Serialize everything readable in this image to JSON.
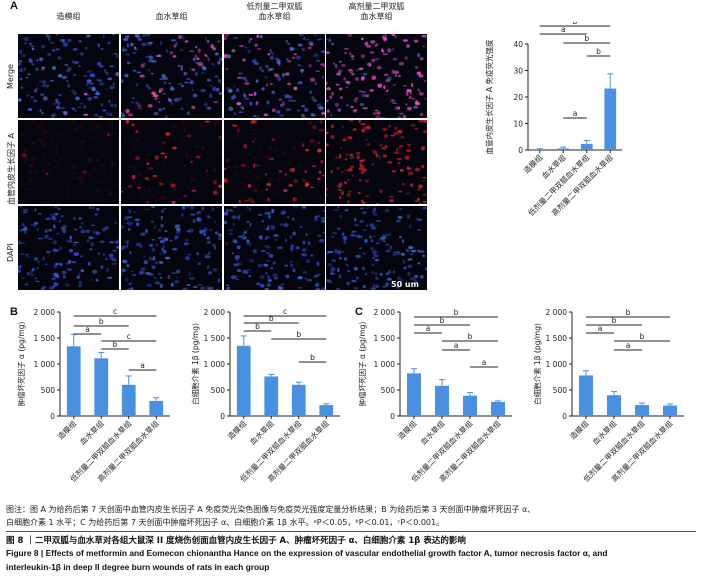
{
  "panel_letters": {
    "a": "A",
    "b": "B",
    "c": "C"
  },
  "microscopy": {
    "columns": [
      "造模组",
      "血水草组",
      "低剂量二甲双胍\n血水草组",
      "高剂量二甲双胍\n血水草组"
    ],
    "rows": [
      "Merge",
      "血管内皮生长因子 A",
      "DAPI"
    ],
    "scale_bar_label": "50 um"
  },
  "chart_data": [
    {
      "id": "A",
      "type": "bar",
      "title": "",
      "ylabel": "血管内皮生长因子 A 免疫荧光强度",
      "xlabel": "",
      "categories": [
        "造模组",
        "血水草组",
        "低剂量二甲双胍血水草组",
        "高剂量二甲双胍血水草组"
      ],
      "values": [
        0.3,
        0.6,
        2.3,
        23.2
      ],
      "errors": [
        0.2,
        0.5,
        1.3,
        5.5
      ],
      "ylim": [
        0,
        40
      ],
      "yticks": [
        0,
        10,
        20,
        30,
        40
      ],
      "significance": [
        {
          "from": 0,
          "to": 3,
          "label": "b"
        },
        {
          "from": 0,
          "to": 2,
          "label": "a"
        },
        {
          "from": 1,
          "to": 3,
          "label": "b"
        },
        {
          "from": 2,
          "to": 3,
          "label": "b"
        },
        {
          "from": 1,
          "to": 2,
          "label": "a"
        }
      ],
      "color": "#4a90e2"
    },
    {
      "id": "B1",
      "type": "bar",
      "title": "",
      "ylabel": "肿瘤坏死因子 α (pg/mg)",
      "xlabel": "",
      "categories": [
        "造模组",
        "血水草组",
        "低剂量二甲双胍血水草组",
        "高剂量二甲双胍血水草组"
      ],
      "values": [
        1340,
        1110,
        600,
        290
      ],
      "errors": [
        230,
        110,
        170,
        60
      ],
      "ylim": [
        0,
        2000
      ],
      "yticks": [
        0,
        500,
        1000,
        1500,
        2000
      ],
      "significance": [
        {
          "from": 0,
          "to": 3,
          "label": "c"
        },
        {
          "from": 0,
          "to": 2,
          "label": "b"
        },
        {
          "from": 0,
          "to": 1,
          "label": "a"
        },
        {
          "from": 1,
          "to": 3,
          "label": "c"
        },
        {
          "from": 1,
          "to": 2,
          "label": "b"
        },
        {
          "from": 2,
          "to": 3,
          "label": "a"
        }
      ],
      "color": "#4a90e2"
    },
    {
      "id": "B2",
      "type": "bar",
      "title": "",
      "ylabel": "白细胞介素 1β (pg/mg)",
      "xlabel": "",
      "categories": [
        "造模组",
        "血水草组",
        "低剂量二甲双胍血水草组",
        "高剂量二甲双胍血水草组"
      ],
      "values": [
        1350,
        760,
        600,
        210
      ],
      "errors": [
        190,
        40,
        50,
        25
      ],
      "ylim": [
        0,
        2000
      ],
      "yticks": [
        0,
        500,
        1000,
        1500,
        2000
      ],
      "significance": [
        {
          "from": 0,
          "to": 3,
          "label": "c"
        },
        {
          "from": 0,
          "to": 2,
          "label": "b"
        },
        {
          "from": 0,
          "to": 1,
          "label": "b"
        },
        {
          "from": 1,
          "to": 3,
          "label": "b"
        },
        {
          "from": 2,
          "to": 3,
          "label": "b"
        }
      ],
      "color": "#4a90e2"
    },
    {
      "id": "C1",
      "type": "bar",
      "title": "",
      "ylabel": "肿瘤坏死因子 α (pg/mg)",
      "xlabel": "",
      "categories": [
        "造模组",
        "血水草组",
        "低剂量二甲双胍血水草组",
        "高剂量二甲双胍血水草组"
      ],
      "values": [
        820,
        580,
        390,
        270
      ],
      "errors": [
        90,
        120,
        60,
        20
      ],
      "ylim": [
        0,
        2000
      ],
      "yticks": [
        0,
        500,
        1000,
        1500,
        2000
      ],
      "significance": [
        {
          "from": 0,
          "to": 3,
          "label": "b"
        },
        {
          "from": 0,
          "to": 2,
          "label": "b"
        },
        {
          "from": 0,
          "to": 1,
          "label": "a"
        },
        {
          "from": 1,
          "to": 3,
          "label": "b"
        },
        {
          "from": 1,
          "to": 2,
          "label": "a"
        },
        {
          "from": 2,
          "to": 3,
          "label": "a"
        }
      ],
      "color": "#4a90e2"
    },
    {
      "id": "C2",
      "type": "bar",
      "title": "",
      "ylabel": "白细胞介素 1β (pg/mg)",
      "xlabel": "",
      "categories": [
        "造模组",
        "血水草组",
        "低剂量二甲双胍血水草组",
        "高剂量二甲双胍血水草组"
      ],
      "values": [
        780,
        400,
        210,
        200
      ],
      "errors": [
        90,
        70,
        40,
        30
      ],
      "ylim": [
        0,
        2000
      ],
      "yticks": [
        0,
        500,
        1000,
        1500,
        2000
      ],
      "significance": [
        {
          "from": 0,
          "to": 3,
          "label": "b"
        },
        {
          "from": 0,
          "to": 2,
          "label": "b"
        },
        {
          "from": 0,
          "to": 1,
          "label": "a"
        },
        {
          "from": 1,
          "to": 3,
          "label": "b"
        },
        {
          "from": 1,
          "to": 2,
          "label": "a"
        }
      ],
      "color": "#4a90e2"
    }
  ],
  "caption": {
    "note_line1": "图注：图 A 为给药后第 7 天创面中血管内皮生长因子 A 免疫荧光染色图像与免疫荧光强度定量分析结果；B 为给药后第 3 天创面中肿瘤坏死因子 α、",
    "note_line2": "白细胞介素 1 水平；C 为给药后第 7 天创面中肿瘤坏死因子 α、白细胞介素 1β 水平。ᵃP＜0.05，ᵇP＜0.01，ᶜP＜0.001。",
    "title_cn": "图 8 ｜二甲双胍与血水草对各组大鼠深 II 度烧伤创面血管内皮生长因子 A、肿瘤坏死因子 α、白细胞介素 1β 表达的影响",
    "title_en_line1": "Figure 8 | Effects of metformin and Eomecon chionantha Hance on the expression of vascular endothelial growth factor A, tumor necrosis factor α, and",
    "title_en_line2": "interleukin-1β in deep II degree burn wounds of rats in each group"
  }
}
